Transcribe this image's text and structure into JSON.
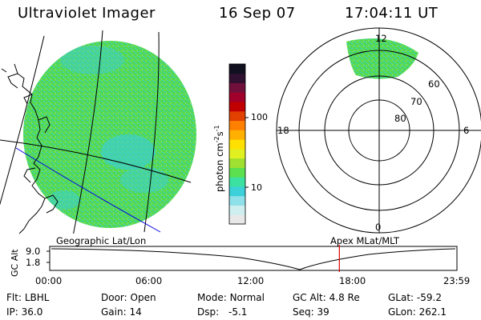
{
  "header": {
    "title": "Ultraviolet Imager",
    "date": "16 Sep 07",
    "time": "17:04:11 UT"
  },
  "colorbar": {
    "unit_main": "photon cm",
    "unit_exp1": "-2",
    "unit_mid": "s",
    "unit_exp2": "-1",
    "ticks": [
      {
        "label": "100",
        "value": 100
      },
      {
        "label": "10",
        "value": 10
      }
    ],
    "colors_bottom_to_top": [
      "#e8e8e8",
      "#cfeef0",
      "#8fe0e8",
      "#3cd0d8",
      "#3ce0a0",
      "#5ce050",
      "#a0e030",
      "#e0f020",
      "#ffe000",
      "#ffb000",
      "#ff8000",
      "#e04000",
      "#c00000",
      "#a0002a",
      "#70103a",
      "#301030",
      "#101020"
    ]
  },
  "polar_plot": {
    "mlt_labels": [
      "12",
      "18",
      "6",
      "0"
    ],
    "lat_labels": [
      "60",
      "70",
      "80"
    ]
  },
  "timeline": {
    "left_label": "Geographic Lat/Lon",
    "right_label": "Apex MLat/MLT",
    "ylabel": "GC Alt",
    "y_ticks": [
      "9.0",
      "1.8"
    ],
    "x_ticks": [
      "00:00",
      "06:00",
      "12:00",
      "18:00",
      "23:59"
    ],
    "current_time_hours": 17.07
  },
  "info": {
    "flt": {
      "label": "Flt:",
      "value": "LBHL"
    },
    "ip": {
      "label": "IP:",
      "value": "36.0"
    },
    "door": {
      "label": "Door:",
      "value": "Open"
    },
    "gain": {
      "label": "Gain:",
      "value": "14"
    },
    "mode": {
      "label": "Mode:",
      "value": "Normal"
    },
    "dsp": {
      "label": "Dsp:",
      "value": "-5.1"
    },
    "gc_alt": {
      "label": "GC Alt:",
      "value": "4.8 Re"
    },
    "seq": {
      "label": "Seq:",
      "value": "39"
    },
    "glat": {
      "label": "GLat:",
      "value": "-59.2"
    },
    "glon": {
      "label": "GLon:",
      "value": "262.1"
    }
  },
  "colors": {
    "image_green": "#52d852",
    "image_cyan": "#3ccfd6",
    "marker": "#e00000",
    "coast": "#000000",
    "terminator": "#0000e0"
  }
}
